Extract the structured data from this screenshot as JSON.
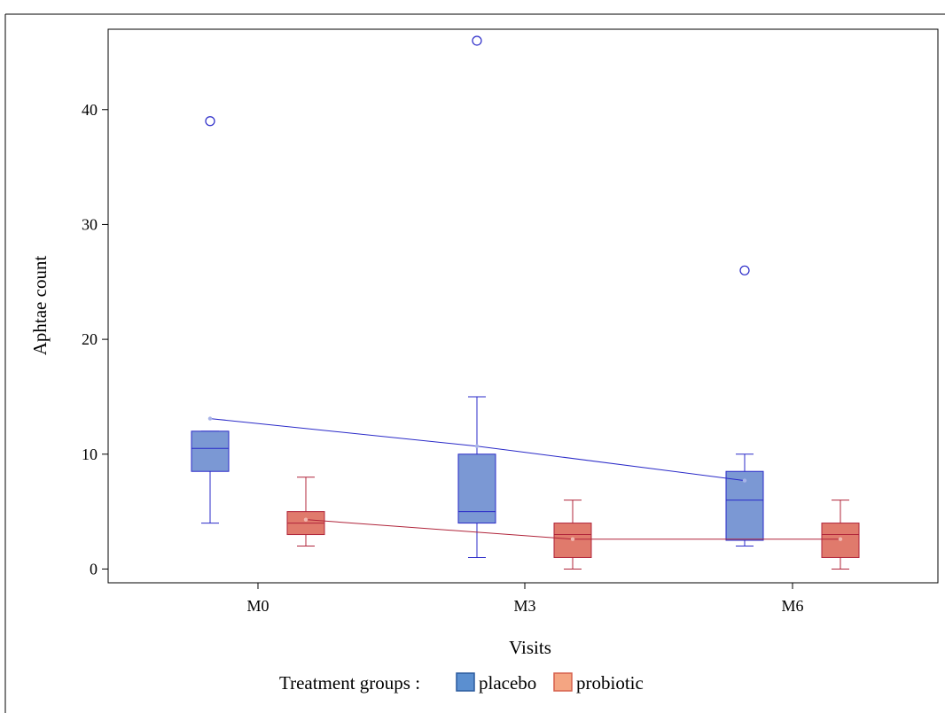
{
  "chart_data": {
    "type": "boxplot",
    "xlabel": "Visits",
    "ylabel": "Aphtae count",
    "categories": [
      "M0",
      "M3",
      "M6"
    ],
    "y_ticks": [
      0,
      10,
      20,
      30,
      40
    ],
    "ylim": [
      -1.2,
      47
    ],
    "grid": false,
    "legend": {
      "title": "Treatment groups :",
      "placement": "bottom",
      "entries": [
        {
          "label": "placebo",
          "swatch_fill": "#5b8fd0",
          "swatch_stroke": "#2b5a9e"
        },
        {
          "label": "probiotic",
          "swatch_fill": "#f4a582",
          "swatch_stroke": "#d6604d"
        }
      ]
    },
    "series": [
      {
        "name": "placebo",
        "box_fill": "#7b98d4",
        "line_color": "#2a2ac8",
        "mean_color": "#a8b4e8",
        "boxes": [
          {
            "category": "M0",
            "min": 4,
            "q1": 8.5,
            "median": 10.5,
            "q3": 12,
            "max": 12,
            "mean": 13.1,
            "outliers": [
              39
            ]
          },
          {
            "category": "M3",
            "min": 1,
            "q1": 4,
            "median": 5,
            "q3": 10,
            "max": 15,
            "mean": 10.7,
            "outliers": [
              46
            ]
          },
          {
            "category": "M6",
            "min": 2,
            "q1": 2.5,
            "median": 6,
            "q3": 8.5,
            "max": 10,
            "mean": 7.7,
            "outliers": [
              26
            ]
          }
        ]
      },
      {
        "name": "probiotic",
        "box_fill": "#e07a6c",
        "line_color": "#b0243a",
        "mean_color": "#f0b8b0",
        "boxes": [
          {
            "category": "M0",
            "min": 2,
            "q1": 3,
            "median": 4,
            "q3": 5,
            "max": 8,
            "mean": 4.3,
            "outliers": []
          },
          {
            "category": "M3",
            "min": 0,
            "q1": 1,
            "median": 3,
            "q3": 4,
            "max": 6,
            "mean": 2.6,
            "outliers": []
          },
          {
            "category": "M6",
            "min": 0,
            "q1": 1,
            "median": 3,
            "q3": 4,
            "max": 6,
            "mean": 2.6,
            "outliers": []
          }
        ]
      }
    ]
  }
}
